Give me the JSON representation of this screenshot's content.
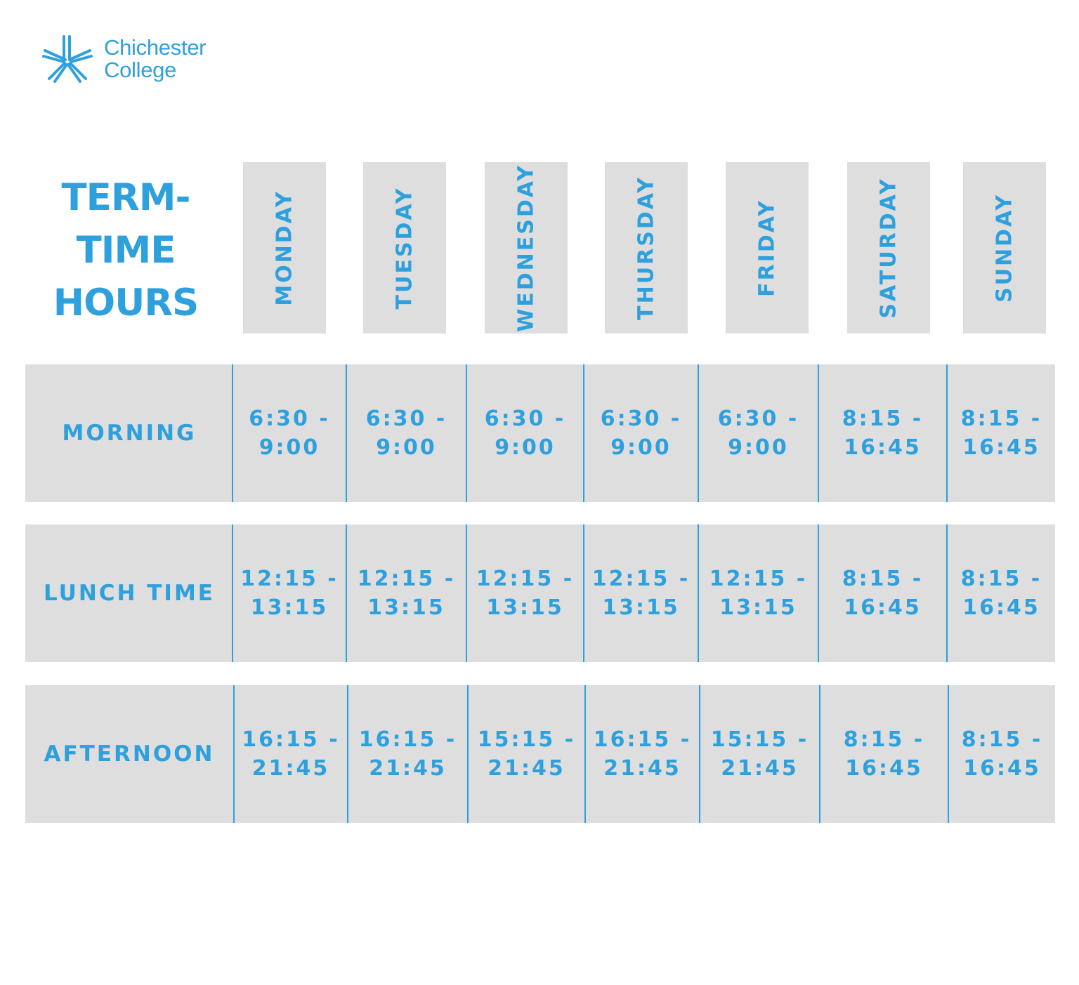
{
  "logo": {
    "line1": "Chichester",
    "line2": "College",
    "icon": "asterisk-star-logo"
  },
  "title": {
    "line1": "TERM-",
    "line2": "TIME",
    "line3": "HOURS"
  },
  "days": [
    "MONDAY",
    "TUESDAY",
    "WEDNESDAY",
    "THURSDAY",
    "FRIDAY",
    "SATURDAY",
    "SUNDAY"
  ],
  "rows": [
    {
      "label": "MORNING",
      "cells": [
        [
          "6:30 -",
          "9:00"
        ],
        [
          "6:30 -",
          "9:00"
        ],
        [
          "6:30 -",
          "9:00"
        ],
        [
          "6:30 -",
          "9:00"
        ],
        [
          "6:30 -",
          "9:00"
        ],
        [
          "8:15 -",
          "16:45"
        ],
        [
          "8:15 -",
          "16:45"
        ]
      ]
    },
    {
      "label": "LUNCH TIME",
      "cells": [
        [
          "12:15 -",
          "13:15"
        ],
        [
          "12:15 -",
          "13:15"
        ],
        [
          "12:15 -",
          "13:15"
        ],
        [
          "12:15 -",
          "13:15"
        ],
        [
          "12:15 -",
          "13:15"
        ],
        [
          "8:15 -",
          "16:45"
        ],
        [
          "8:15 -",
          "16:45"
        ]
      ]
    },
    {
      "label": "AFTERNOON",
      "cells": [
        [
          "16:15 -",
          "21:45"
        ],
        [
          "16:15 -",
          "21:45"
        ],
        [
          "15:15 -",
          "21:45"
        ],
        [
          "16:15 -",
          "21:45"
        ],
        [
          "15:15 -",
          "21:45"
        ],
        [
          "8:15 -",
          "16:45"
        ],
        [
          "8:15 -",
          "16:45"
        ]
      ]
    }
  ],
  "colors": {
    "accent": "#2ea0dd",
    "box": "#dedede",
    "background": "#ffffff"
  }
}
